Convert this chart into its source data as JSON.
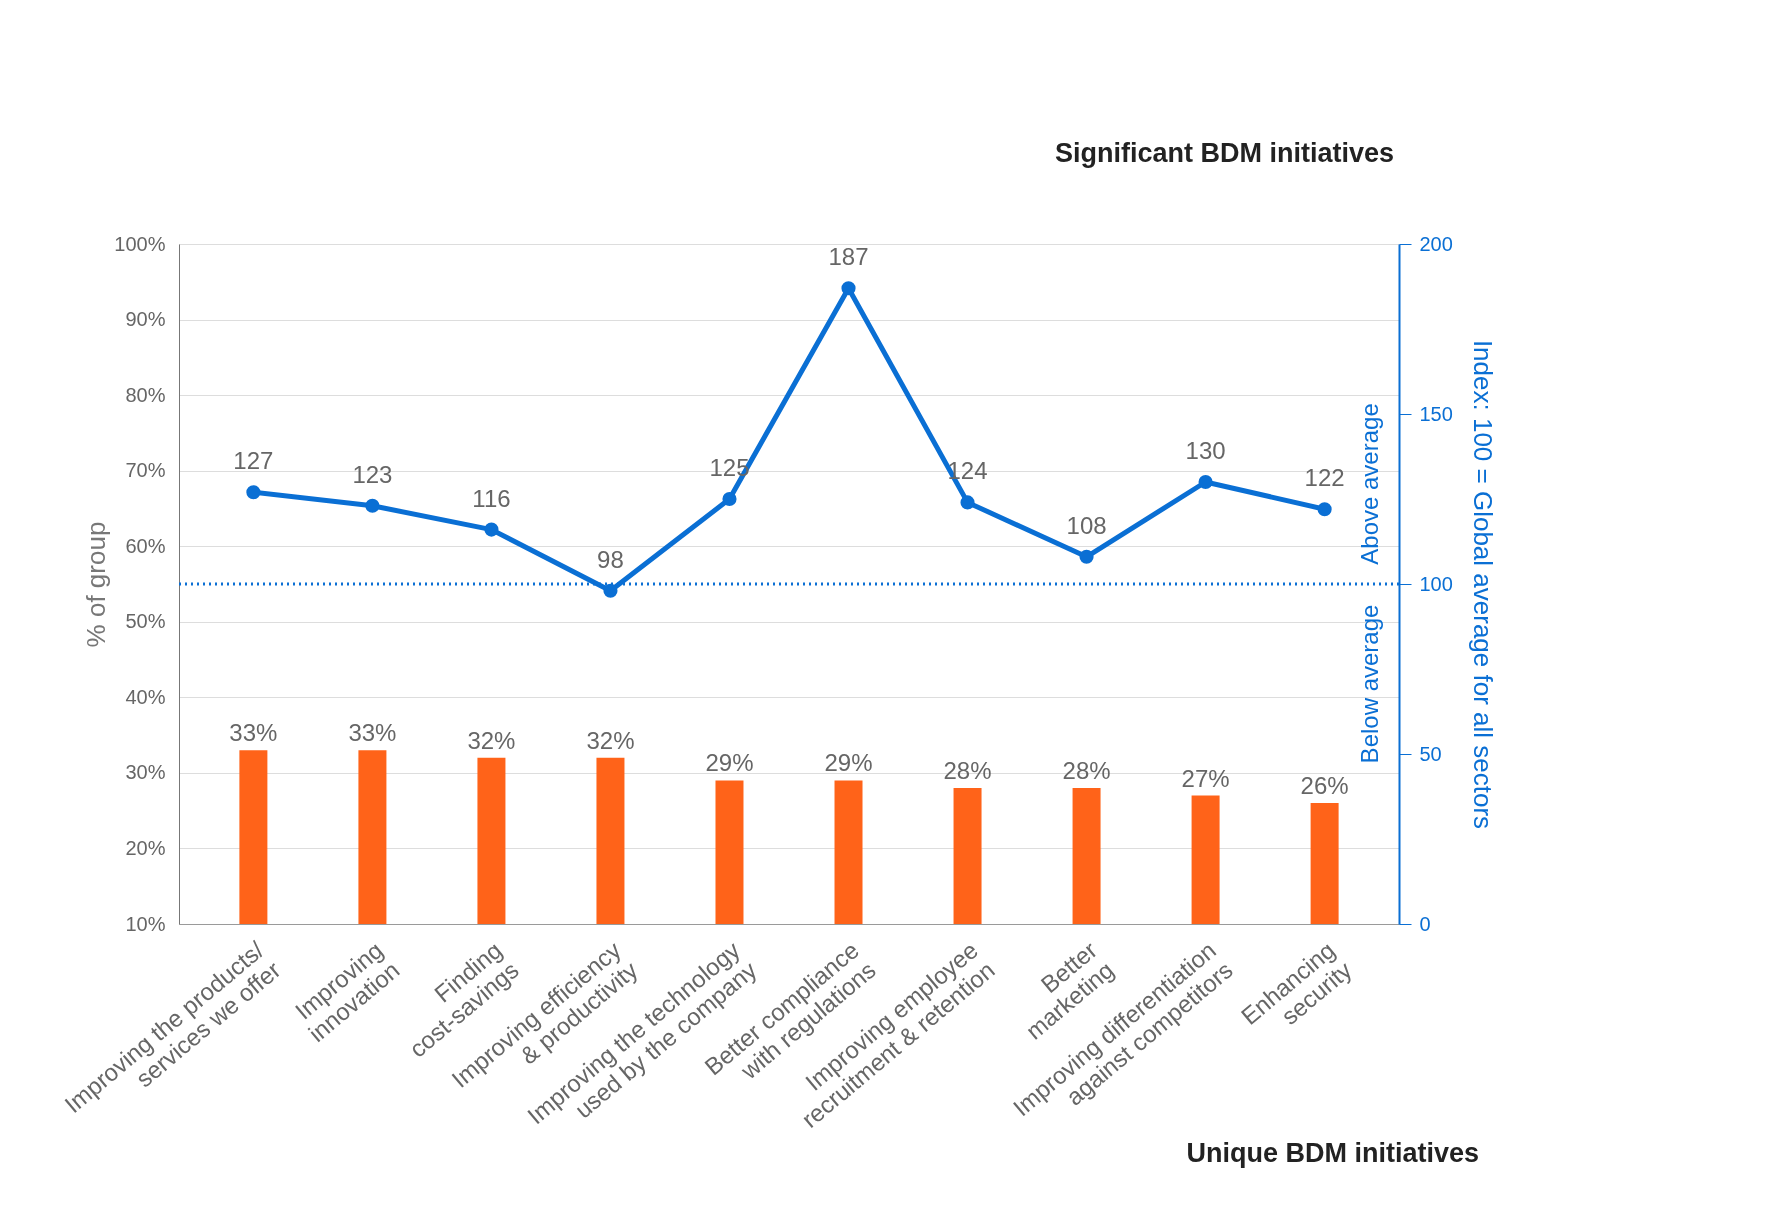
{
  "chart_data": {
    "type": "bar",
    "categories": [
      "Improving the products/\nservices we offer",
      "Improving\ninnovation",
      "Finding\ncost-savings",
      "Improving efficiency\n& productivity",
      "Improving the technology\nused by the company",
      "Better compliance\nwith regulations",
      "Improving employee\nrecruitment & retention",
      "Better\nmarketing",
      "Improving differentiation\nagainst competitors",
      "Enhancing\nsecurity"
    ],
    "series": [
      {
        "color": "#ff6319",
        "values": [
          33,
          33,
          32,
          32,
          29,
          29,
          28,
          28,
          27,
          26
        ],
        "value_labels": [
          "33%",
          "33%",
          "32%",
          "32%",
          "29%",
          "29%",
          "28%",
          "28%",
          "27%",
          "26%"
        ]
      },
      {
        "type": "line",
        "axis": "y2",
        "color": "#0a6fd4",
        "values": [
          127,
          123,
          116,
          98,
          125,
          187,
          124,
          108,
          130,
          122
        ],
        "value_labels": [
          "127",
          "123",
          "116",
          "98",
          "125",
          "187",
          "124",
          "108",
          "130",
          "122"
        ]
      }
    ],
    "ylabel": "% of group",
    "y2label": "Index: 100 = Global average for all sectors",
    "ylim": [
      10,
      100
    ],
    "yticks": [
      {
        "value": 10,
        "label": "10%"
      },
      {
        "value": 20,
        "label": "20%"
      },
      {
        "value": 30,
        "label": "30%"
      },
      {
        "value": 40,
        "label": "40%"
      },
      {
        "value": 50,
        "label": "50%"
      },
      {
        "value": 60,
        "label": "60%"
      },
      {
        "value": 70,
        "label": "70%"
      },
      {
        "value": 80,
        "label": "80%"
      },
      {
        "value": 90,
        "label": "90%"
      },
      {
        "value": 100,
        "label": "100%"
      }
    ],
    "y2lim": [
      0,
      200
    ],
    "y2ticks": [
      0,
      50,
      100,
      150,
      200
    ],
    "ref_lines": [
      {
        "axis": "y2",
        "value": 100,
        "color": "#0a6fd4",
        "line_style": "dotted"
      }
    ],
    "annotations": [
      "Significant BDM initiatives",
      "Unique BDM initiatives",
      "Above average",
      "Below average"
    ],
    "grid": "y",
    "marker": "circle",
    "line_style": "solid"
  }
}
